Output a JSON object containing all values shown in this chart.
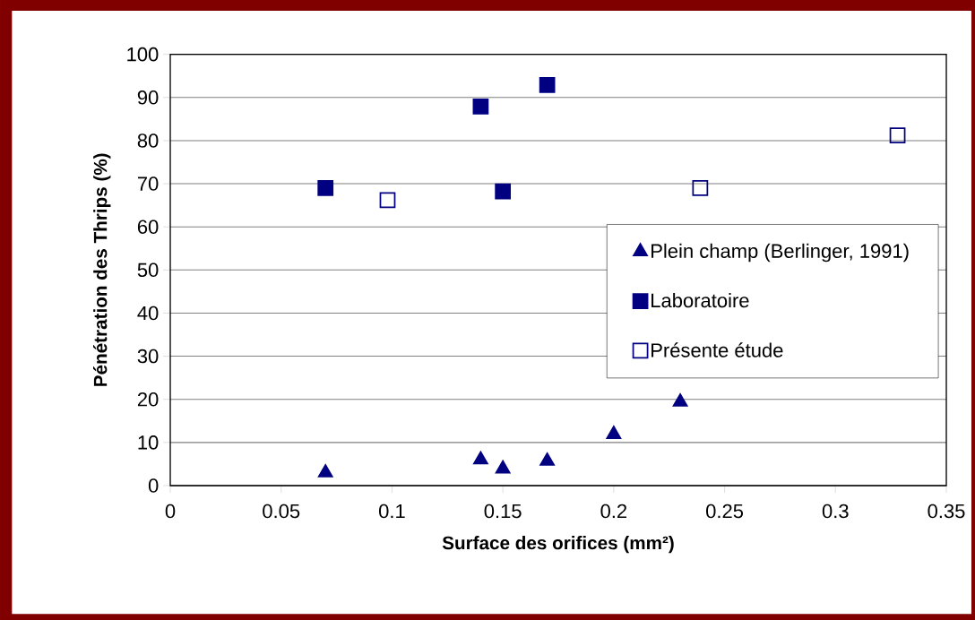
{
  "chart_data": {
    "type": "scatter",
    "xlabel": "Surface des orifices (mm²)",
    "ylabel": "Pénétration des Thrips (%)",
    "xlim": [
      0,
      0.35
    ],
    "ylim": [
      0,
      100
    ],
    "xticks": [
      0,
      0.05,
      0.1,
      0.15,
      0.2,
      0.25,
      0.3,
      0.35
    ],
    "yticks": [
      0,
      10,
      20,
      30,
      40,
      50,
      60,
      70,
      80,
      90,
      100
    ],
    "grid": "y",
    "legend": "right",
    "series": [
      {
        "name": "Plein champ (Berlinger, 1991)",
        "color": "#000080",
        "marker": "triangle",
        "x": [
          0.07,
          0.14,
          0.15,
          0.17,
          0.2,
          0.23
        ],
        "values": [
          3.0,
          6.0,
          3.9,
          5.7,
          11.9,
          19.4
        ]
      },
      {
        "name": "Laboratoire",
        "color": "#000080",
        "marker": "square",
        "x": [
          0.07,
          0.14,
          0.15,
          0.17
        ],
        "values": [
          69.0,
          87.9,
          68.2,
          92.9
        ]
      },
      {
        "name": "Présente étude",
        "color": "#000080",
        "marker": "square-open",
        "x": [
          0.098,
          0.239,
          0.328
        ],
        "values": [
          66.2,
          69.0,
          81.2
        ]
      }
    ]
  }
}
